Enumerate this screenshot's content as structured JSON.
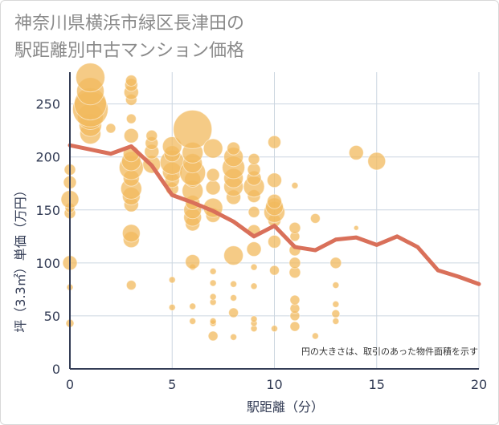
{
  "title_lines": [
    "神奈川県横浜市緑区長津田の",
    "駅距離別中古マンション価格"
  ],
  "chart_data": {
    "type": "scatter",
    "title": "神奈川県横浜市緑区長津田の駅距離別中古マンション価格",
    "xlabel": "駅距離（分）",
    "ylabel": "坪（3.3㎡）単価（万円）",
    "xlim": [
      0,
      20
    ],
    "ylim": [
      0,
      280
    ],
    "xticks": [
      0,
      5,
      10,
      15,
      20
    ],
    "yticks": [
      0,
      50,
      100,
      150,
      200,
      250
    ],
    "grid": true,
    "note": "円の大きさは、取引のあった物件面積を示す",
    "colors": {
      "bubble": "#f2b95e",
      "line": "#d9705a",
      "grid": "#ccd6e0",
      "axis": "#333c55"
    },
    "scatter": [
      {
        "x": 0,
        "y": 43,
        "s": 5
      },
      {
        "x": 0,
        "y": 77,
        "s": 4
      },
      {
        "x": 0,
        "y": 100,
        "s": 9
      },
      {
        "x": 0,
        "y": 147,
        "s": 7
      },
      {
        "x": 0,
        "y": 152,
        "s": 6
      },
      {
        "x": 0,
        "y": 160,
        "s": 11
      },
      {
        "x": 0,
        "y": 176,
        "s": 8
      },
      {
        "x": 0,
        "y": 188,
        "s": 7
      },
      {
        "x": 1,
        "y": 222,
        "s": 13
      },
      {
        "x": 1,
        "y": 230,
        "s": 14
      },
      {
        "x": 1,
        "y": 238,
        "s": 16
      },
      {
        "x": 1,
        "y": 245,
        "s": 22
      },
      {
        "x": 1,
        "y": 250,
        "s": 20
      },
      {
        "x": 1,
        "y": 262,
        "s": 17
      },
      {
        "x": 1,
        "y": 275,
        "s": 18
      },
      {
        "x": 2,
        "y": 227,
        "s": 6
      },
      {
        "x": 3,
        "y": 79,
        "s": 6
      },
      {
        "x": 3,
        "y": 122,
        "s": 10
      },
      {
        "x": 3,
        "y": 128,
        "s": 11
      },
      {
        "x": 3,
        "y": 155,
        "s": 9
      },
      {
        "x": 3,
        "y": 163,
        "s": 11
      },
      {
        "x": 3,
        "y": 170,
        "s": 13
      },
      {
        "x": 3,
        "y": 180,
        "s": 10
      },
      {
        "x": 3,
        "y": 190,
        "s": 15
      },
      {
        "x": 3,
        "y": 196,
        "s": 12
      },
      {
        "x": 3,
        "y": 203,
        "s": 10
      },
      {
        "x": 3,
        "y": 220,
        "s": 9
      },
      {
        "x": 3,
        "y": 236,
        "s": 6
      },
      {
        "x": 3,
        "y": 254,
        "s": 7
      },
      {
        "x": 3,
        "y": 261,
        "s": 9
      },
      {
        "x": 3,
        "y": 268,
        "s": 8
      },
      {
        "x": 3,
        "y": 272,
        "s": 7
      },
      {
        "x": 4,
        "y": 193,
        "s": 11
      },
      {
        "x": 4,
        "y": 205,
        "s": 9
      },
      {
        "x": 4,
        "y": 213,
        "s": 8
      },
      {
        "x": 4,
        "y": 220,
        "s": 7
      },
      {
        "x": 5,
        "y": 58,
        "s": 4
      },
      {
        "x": 5,
        "y": 84,
        "s": 4
      },
      {
        "x": 5,
        "y": 170,
        "s": 8
      },
      {
        "x": 5,
        "y": 178,
        "s": 9
      },
      {
        "x": 5,
        "y": 186,
        "s": 12
      },
      {
        "x": 5,
        "y": 195,
        "s": 15
      },
      {
        "x": 5,
        "y": 203,
        "s": 10
      },
      {
        "x": 5,
        "y": 210,
        "s": 12
      },
      {
        "x": 6,
        "y": 45,
        "s": 4
      },
      {
        "x": 6,
        "y": 59,
        "s": 4
      },
      {
        "x": 6,
        "y": 96,
        "s": 4
      },
      {
        "x": 6,
        "y": 101,
        "s": 9
      },
      {
        "x": 6,
        "y": 137,
        "s": 9
      },
      {
        "x": 6,
        "y": 143,
        "s": 11
      },
      {
        "x": 6,
        "y": 150,
        "s": 11
      },
      {
        "x": 6,
        "y": 157,
        "s": 9
      },
      {
        "x": 6,
        "y": 168,
        "s": 13
      },
      {
        "x": 6,
        "y": 179,
        "s": 10
      },
      {
        "x": 6,
        "y": 185,
        "s": 16
      },
      {
        "x": 6,
        "y": 194,
        "s": 12
      },
      {
        "x": 6,
        "y": 204,
        "s": 13
      },
      {
        "x": 6,
        "y": 226,
        "s": 24
      },
      {
        "x": 7,
        "y": 31,
        "s": 6
      },
      {
        "x": 7,
        "y": 43,
        "s": 4
      },
      {
        "x": 7,
        "y": 45,
        "s": 4
      },
      {
        "x": 7,
        "y": 63,
        "s": 4
      },
      {
        "x": 7,
        "y": 68,
        "s": 4
      },
      {
        "x": 7,
        "y": 81,
        "s": 4
      },
      {
        "x": 7,
        "y": 92,
        "s": 4
      },
      {
        "x": 7,
        "y": 145,
        "s": 9
      },
      {
        "x": 7,
        "y": 152,
        "s": 12
      },
      {
        "x": 7,
        "y": 171,
        "s": 9
      },
      {
        "x": 7,
        "y": 183,
        "s": 8
      },
      {
        "x": 7,
        "y": 208,
        "s": 12
      },
      {
        "x": 8,
        "y": 30,
        "s": 4
      },
      {
        "x": 8,
        "y": 53,
        "s": 6
      },
      {
        "x": 8,
        "y": 67,
        "s": 4
      },
      {
        "x": 8,
        "y": 80,
        "s": 4
      },
      {
        "x": 8,
        "y": 107,
        "s": 12
      },
      {
        "x": 8,
        "y": 162,
        "s": 9
      },
      {
        "x": 8,
        "y": 172,
        "s": 12
      },
      {
        "x": 8,
        "y": 180,
        "s": 12
      },
      {
        "x": 8,
        "y": 190,
        "s": 14
      },
      {
        "x": 8,
        "y": 200,
        "s": 12
      },
      {
        "x": 8,
        "y": 208,
        "s": 8
      },
      {
        "x": 9,
        "y": 38,
        "s": 4
      },
      {
        "x": 9,
        "y": 43,
        "s": 4
      },
      {
        "x": 9,
        "y": 47,
        "s": 4
      },
      {
        "x": 9,
        "y": 78,
        "s": 4
      },
      {
        "x": 9,
        "y": 96,
        "s": 4
      },
      {
        "x": 9,
        "y": 113,
        "s": 9
      },
      {
        "x": 9,
        "y": 130,
        "s": 8
      },
      {
        "x": 9,
        "y": 148,
        "s": 7
      },
      {
        "x": 9,
        "y": 163,
        "s": 8
      },
      {
        "x": 9,
        "y": 172,
        "s": 13
      },
      {
        "x": 9,
        "y": 180,
        "s": 9
      },
      {
        "x": 9,
        "y": 188,
        "s": 8
      },
      {
        "x": 9,
        "y": 198,
        "s": 7
      },
      {
        "x": 10,
        "y": 38,
        "s": 4
      },
      {
        "x": 10,
        "y": 93,
        "s": 6
      },
      {
        "x": 10,
        "y": 120,
        "s": 8
      },
      {
        "x": 10,
        "y": 140,
        "s": 8
      },
      {
        "x": 10,
        "y": 148,
        "s": 13
      },
      {
        "x": 10,
        "y": 153,
        "s": 11
      },
      {
        "x": 10,
        "y": 158,
        "s": 9
      },
      {
        "x": 10,
        "y": 178,
        "s": 9
      },
      {
        "x": 10,
        "y": 214,
        "s": 8
      },
      {
        "x": 11,
        "y": 40,
        "s": 6
      },
      {
        "x": 11,
        "y": 50,
        "s": 6
      },
      {
        "x": 11,
        "y": 57,
        "s": 6
      },
      {
        "x": 11,
        "y": 65,
        "s": 6
      },
      {
        "x": 11,
        "y": 91,
        "s": 7
      },
      {
        "x": 11,
        "y": 100,
        "s": 7
      },
      {
        "x": 11,
        "y": 112,
        "s": 7
      },
      {
        "x": 11,
        "y": 125,
        "s": 6
      },
      {
        "x": 11,
        "y": 133,
        "s": 7
      },
      {
        "x": 11,
        "y": 173,
        "s": 4
      },
      {
        "x": 12,
        "y": 31,
        "s": 4
      },
      {
        "x": 12,
        "y": 142,
        "s": 6
      },
      {
        "x": 13,
        "y": 45,
        "s": 4
      },
      {
        "x": 13,
        "y": 52,
        "s": 5
      },
      {
        "x": 13,
        "y": 61,
        "s": 4
      },
      {
        "x": 13,
        "y": 79,
        "s": 4
      },
      {
        "x": 13,
        "y": 100,
        "s": 7
      },
      {
        "x": 14,
        "y": 133,
        "s": 3
      },
      {
        "x": 14,
        "y": 204,
        "s": 9
      },
      {
        "x": 15,
        "y": 196,
        "s": 11
      }
    ],
    "series": [
      {
        "type": "line",
        "x": [
          0,
          1,
          2,
          3,
          4,
          5,
          6,
          7,
          8,
          9,
          10,
          11,
          12,
          13,
          14,
          15,
          16,
          17,
          18,
          19,
          20
        ],
        "values": [
          211,
          207,
          203,
          210,
          192,
          164,
          157,
          149,
          139,
          125,
          135,
          115,
          112,
          122,
          124,
          117,
          125,
          115,
          93,
          87,
          80
        ]
      }
    ]
  }
}
